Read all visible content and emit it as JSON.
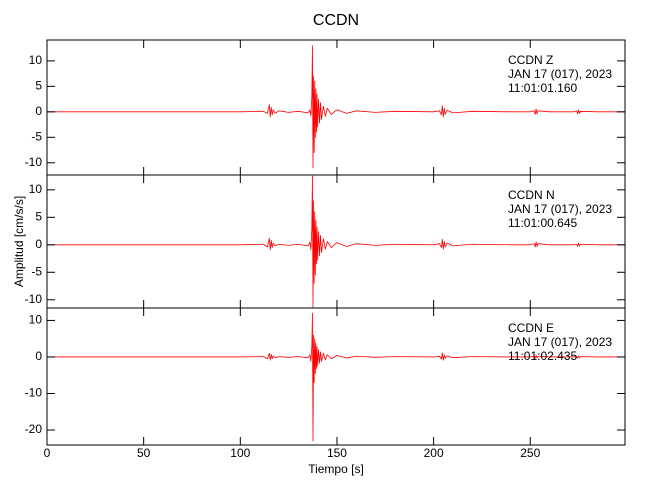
{
  "chart_data": [
    {
      "type": "line",
      "title": "CCDN",
      "annotations": [
        "CCDN   Z",
        "JAN 17 (017), 2023",
        "11:01:01.160"
      ],
      "x": [
        0,
        20,
        40,
        60,
        80,
        100,
        112,
        114,
        115,
        115.5,
        116,
        116.5,
        117,
        118,
        120,
        125,
        130,
        135,
        136,
        136.5,
        137,
        137.3,
        137.6,
        137.9,
        138.2,
        138.5,
        138.8,
        139.1,
        139.4,
        139.7,
        140,
        140.5,
        141,
        141.5,
        142,
        143,
        144,
        145,
        147,
        150,
        155,
        160,
        170,
        180,
        200,
        203,
        204,
        204.5,
        205,
        205.5,
        206,
        207,
        210,
        220,
        240,
        250,
        252,
        252.5,
        253,
        253.5,
        254,
        260,
        272,
        274,
        274.5,
        275,
        275.5,
        276,
        285,
        299
      ],
      "series": [
        {
          "color": "#ff0000",
          "values": [
            0,
            0,
            0,
            0,
            0,
            0,
            0.1,
            -0.3,
            1.4,
            -1.0,
            0.9,
            -0.6,
            0.4,
            -0.3,
            0.2,
            -0.1,
            0.1,
            -0.2,
            0.4,
            -0.8,
            3,
            13,
            -11,
            7,
            -8,
            6,
            -5,
            4.5,
            -4,
            3.5,
            -3,
            2.5,
            -2.2,
            1.8,
            -1.5,
            1.1,
            -0.9,
            0.7,
            -0.5,
            0.4,
            -0.3,
            0.2,
            -0.1,
            0.1,
            0,
            0.2,
            -0.6,
            1.2,
            -1.0,
            0.7,
            -0.5,
            0.3,
            -0.2,
            0.1,
            0,
            0,
            0.2,
            -0.5,
            0.6,
            -0.4,
            0.2,
            0,
            0,
            0.2,
            -0.4,
            0.4,
            -0.3,
            0.1,
            0,
            0
          ]
        }
      ],
      "xlim": [
        0,
        299
      ],
      "xticks": [
        0,
        50,
        100,
        150,
        200,
        250
      ],
      "ylim": [
        -12.4,
        14.1
      ],
      "yticks": [
        -10,
        -5,
        0,
        5,
        10
      ]
    },
    {
      "type": "line",
      "ylabel": "Amplitud [cm/s/s]",
      "annotations": [
        "CCDN   N",
        "JAN 17 (017), 2023",
        "11:01:00.645"
      ],
      "x": [
        0,
        20,
        40,
        60,
        80,
        100,
        112,
        114,
        115,
        115.5,
        116,
        116.5,
        117,
        118,
        120,
        125,
        130,
        135,
        136,
        136.5,
        137,
        137.3,
        137.6,
        137.9,
        138.2,
        138.5,
        138.8,
        139.1,
        139.4,
        139.7,
        140,
        140.5,
        141,
        141.5,
        142,
        143,
        144,
        145,
        147,
        150,
        155,
        160,
        170,
        180,
        200,
        203,
        204,
        204.5,
        205,
        205.5,
        206,
        207,
        210,
        220,
        240,
        250,
        252,
        252.5,
        253,
        253.5,
        254,
        260,
        272,
        274,
        274.5,
        275,
        275.5,
        276,
        285,
        299
      ],
      "series": [
        {
          "color": "#ff0000",
          "values": [
            0,
            0,
            0,
            0,
            0,
            0,
            0.1,
            -0.4,
            1.2,
            -0.9,
            0.8,
            -0.5,
            0.3,
            -0.2,
            0.1,
            -0.1,
            0.1,
            -0.2,
            0.5,
            -0.9,
            3,
            12.5,
            -11.5,
            8,
            -7,
            6,
            -5.5,
            4.5,
            -3.5,
            3.2,
            -2.8,
            2.4,
            -2,
            1.7,
            -1.4,
            1.1,
            -0.8,
            0.6,
            -0.5,
            0.4,
            -0.3,
            0.2,
            -0.1,
            0.1,
            0,
            0.2,
            -0.5,
            1.0,
            -0.8,
            0.6,
            -0.4,
            0.3,
            -0.2,
            0.1,
            0,
            0,
            0.2,
            -0.4,
            0.5,
            -0.3,
            0.2,
            0,
            0,
            0.1,
            -0.3,
            0.3,
            -0.2,
            0.1,
            0,
            0
          ]
        }
      ],
      "xlim": [
        0,
        299
      ],
      "xticks": [
        0,
        50,
        100,
        150,
        200,
        250
      ],
      "ylim": [
        -11.5,
        12.7
      ],
      "yticks": [
        -10,
        -5,
        0,
        5,
        10
      ]
    },
    {
      "type": "line",
      "xlabel": "Tiempo [s]",
      "annotations": [
        "CCDN   E",
        "JAN 17 (017), 2023",
        "11:01:02.435"
      ],
      "x": [
        0,
        20,
        40,
        60,
        80,
        100,
        112,
        114,
        115,
        115.5,
        116,
        116.5,
        117,
        118,
        120,
        125,
        130,
        135,
        136,
        136.5,
        137,
        137.3,
        137.6,
        137.9,
        138.2,
        138.5,
        138.8,
        139.1,
        139.4,
        139.7,
        140,
        140.5,
        141,
        141.5,
        142,
        143,
        144,
        145,
        147,
        150,
        155,
        160,
        170,
        180,
        200,
        203,
        204,
        204.5,
        205,
        205.5,
        206,
        207,
        210,
        220,
        240,
        250,
        252,
        252.5,
        253,
        253.5,
        254,
        260,
        272,
        274,
        274.5,
        275,
        275.5,
        276,
        285,
        299
      ],
      "series": [
        {
          "color": "#ff0000",
          "values": [
            0,
            0,
            0,
            0,
            0,
            0,
            0.1,
            -0.5,
            1.0,
            -0.9,
            0.7,
            -0.5,
            0.3,
            -0.2,
            0.1,
            -0.1,
            0.1,
            -0.2,
            0.6,
            -1.2,
            3,
            12,
            -23,
            6,
            -7,
            5,
            -4.5,
            3.8,
            -3.2,
            2.8,
            -2.4,
            2,
            -1.7,
            1.4,
            -1.2,
            1,
            -0.8,
            0.6,
            -0.5,
            0.4,
            -0.3,
            0.2,
            -0.1,
            0.1,
            0,
            0.2,
            -0.6,
            1.1,
            -0.9,
            0.6,
            -0.4,
            0.3,
            -0.2,
            0.1,
            0,
            0,
            0.2,
            -0.4,
            0.5,
            -0.3,
            0.2,
            0,
            0,
            0.1,
            -0.3,
            0.3,
            -0.2,
            0.1,
            0,
            0
          ]
        }
      ],
      "xlim": [
        0,
        299
      ],
      "xticks": [
        0,
        50,
        100,
        150,
        200,
        250
      ],
      "ylim": [
        -24.1,
        13.4
      ],
      "yticks": [
        -20,
        -10,
        0,
        10
      ]
    }
  ]
}
